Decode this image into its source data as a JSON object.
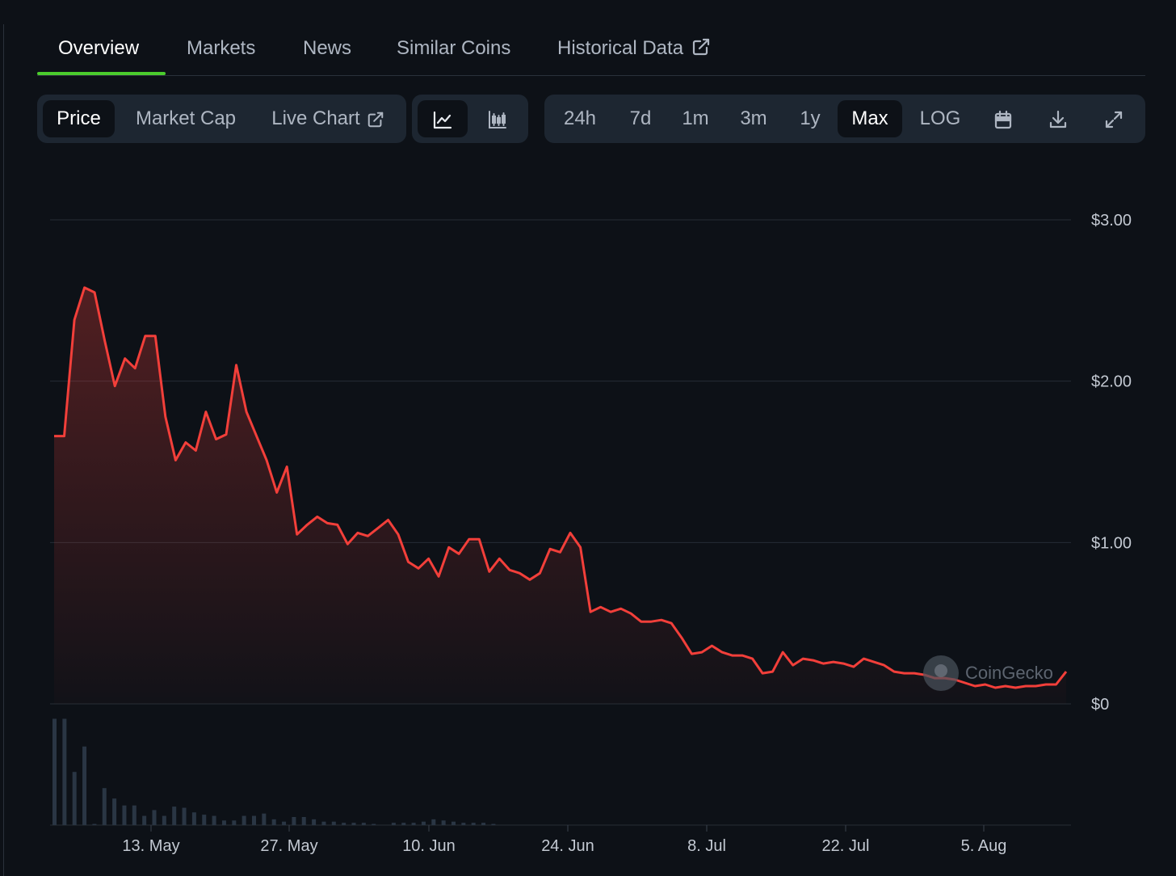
{
  "tabs": [
    {
      "label": "Overview",
      "active": true
    },
    {
      "label": "Markets"
    },
    {
      "label": "News"
    },
    {
      "label": "Similar Coins"
    },
    {
      "label": "Historical Data",
      "external": true
    }
  ],
  "toolbar": {
    "chart_types": [
      {
        "label": "Price",
        "active": true
      },
      {
        "label": "Market Cap"
      },
      {
        "label": "Live Chart",
        "external": true
      }
    ],
    "view_modes": [
      {
        "icon": "line-chart-icon",
        "active": true
      },
      {
        "icon": "candlestick-chart-icon"
      }
    ],
    "ranges": [
      {
        "label": "24h"
      },
      {
        "label": "7d"
      },
      {
        "label": "1m"
      },
      {
        "label": "3m"
      },
      {
        "label": "1y"
      },
      {
        "label": "Max",
        "active": true
      },
      {
        "label": "LOG"
      }
    ],
    "actions": [
      "calendar-icon",
      "download-icon",
      "fullscreen-icon"
    ]
  },
  "watermark": "CoinGecko",
  "colors": {
    "background": "#0d1117",
    "line": "#f23f3a",
    "volume": "#2a3644",
    "grid": "#262d36",
    "accent": "#4bcc2d"
  },
  "chart_data": {
    "type": "line",
    "series": [
      {
        "values": [
          1.66,
          1.66,
          2.38,
          2.58,
          2.55,
          2.25,
          1.97,
          2.14,
          2.08,
          2.28,
          2.28,
          1.78,
          1.51,
          1.62,
          1.57,
          1.81,
          1.64,
          1.67,
          2.1,
          1.81,
          1.66,
          1.51,
          1.31,
          1.47,
          1.05,
          1.11,
          1.16,
          1.12,
          1.11,
          0.99,
          1.06,
          1.04,
          1.09,
          1.14,
          1.05,
          0.88,
          0.84,
          0.9,
          0.79,
          0.97,
          0.93,
          1.02,
          1.02,
          0.82,
          0.9,
          0.83,
          0.81,
          0.77,
          0.81,
          0.96,
          0.94,
          1.06,
          0.97,
          0.57,
          0.6,
          0.57,
          0.59,
          0.56,
          0.51,
          0.51,
          0.52,
          0.5,
          0.41,
          0.31,
          0.32,
          0.36,
          0.32,
          0.3,
          0.3,
          0.28,
          0.19,
          0.2,
          0.32,
          0.24,
          0.28,
          0.27,
          0.25,
          0.26,
          0.25,
          0.23,
          0.28,
          0.26,
          0.24,
          0.2,
          0.19,
          0.19,
          0.18,
          0.16,
          0.16,
          0.15,
          0.13,
          0.11,
          0.12,
          0.1,
          0.11,
          0.1,
          0.11,
          0.11,
          0.12,
          0.12,
          0.2
        ]
      }
    ],
    "volume": [
      0.92,
      0.92,
      0.46,
      0.68,
      0.01,
      0.32,
      0.23,
      0.17,
      0.17,
      0.08,
      0.13,
      0.08,
      0.16,
      0.15,
      0.11,
      0.09,
      0.08,
      0.04,
      0.04,
      0.08,
      0.08,
      0.1,
      0.05,
      0.03,
      0.07,
      0.07,
      0.05,
      0.03,
      0.03,
      0.02,
      0.02,
      0.02,
      0.01,
      0,
      0.02,
      0.02,
      0.02,
      0.03,
      0.05,
      0.04,
      0.03,
      0.02,
      0.02,
      0.02,
      0.01
    ],
    "x_ticks": [
      "13. May",
      "27. May",
      "10. Jun",
      "24. Jun",
      "8. Jul",
      "22. Jul",
      "5. Aug"
    ],
    "y_ticks": [
      {
        "value": 0,
        "label": "$0"
      },
      {
        "value": 1,
        "label": "$1.00"
      },
      {
        "value": 2,
        "label": "$2.00"
      },
      {
        "value": 3,
        "label": "$3.00"
      }
    ],
    "ylim": [
      0,
      3
    ],
    "grid": true,
    "y_axis_position": "right"
  }
}
